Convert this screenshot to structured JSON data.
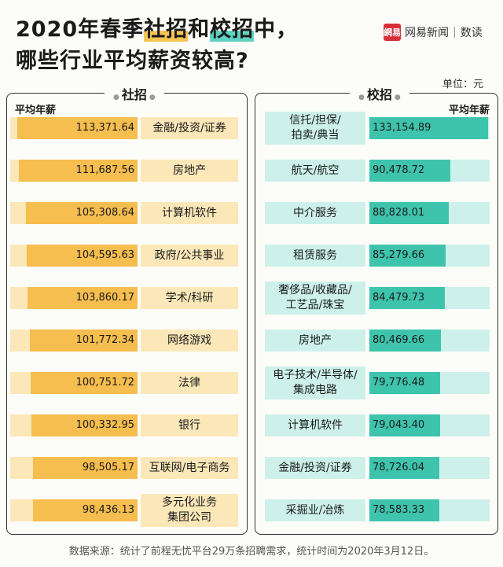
{
  "title_lines": [
    "2020年春季",
    "社招",
    "和",
    "校招",
    "中，",
    "哪些行业平均薪资较高?"
  ],
  "brand": {
    "logo": "網易",
    "name": "网易新闻",
    "sub": "数读"
  },
  "unit_label": "单位：元",
  "footer": "数据来源：统计了前程无忧平台29万条招聘需求，统计时间为2020年3月12日。",
  "colors": {
    "social_fill": "#f6bd4f",
    "social_track": "#fbe7b8",
    "campus_fill": "#3ec4ad",
    "campus_track": "#cdf1ea"
  },
  "chart_data": [
    {
      "type": "bar",
      "title": "社招",
      "ylabel": "平均年薪",
      "categories": [
        "金融/投资/证券",
        "房地产",
        "计算机软件",
        "政府/公共事业",
        "学术/科研",
        "网络游戏",
        "法律",
        "银行",
        "互联网/电子商务",
        "多元化业务\n集团公司"
      ],
      "values": [
        113371.64,
        111687.56,
        105308.64,
        104595.63,
        103860.17,
        101772.34,
        100751.72,
        100332.95,
        98505.17,
        98436.13
      ],
      "value_labels": [
        "113,371.64",
        "111,687.56",
        "105,308.64",
        "104,595.63",
        "103,860.17",
        "101,772.34",
        "100,751.72",
        "100,332.95",
        "98,505.17",
        "98,436.13"
      ]
    },
    {
      "type": "bar",
      "title": "校招",
      "ylabel": "平均年薪",
      "categories": [
        "信托/担保/\n拍卖/典当",
        "航天/航空",
        "中介服务",
        "租赁服务",
        "奢侈品/收藏品/\n工艺品/珠宝",
        "房地产",
        "电子技术/半导体/\n集成电路",
        "计算机软件",
        "金融/投资/证券",
        "采掘业/冶炼"
      ],
      "values": [
        133154.89,
        90478.72,
        88828.01,
        85279.66,
        84479.73,
        80469.66,
        79776.48,
        79043.4,
        78726.04,
        78583.33
      ],
      "value_labels": [
        "133,154.89",
        "90,478.72",
        "88,828.01",
        "85,279.66",
        "84,479.73",
        "80,469.66",
        "79,776.48",
        "79,043.40",
        "78,726.04",
        "78,583.33"
      ]
    }
  ]
}
